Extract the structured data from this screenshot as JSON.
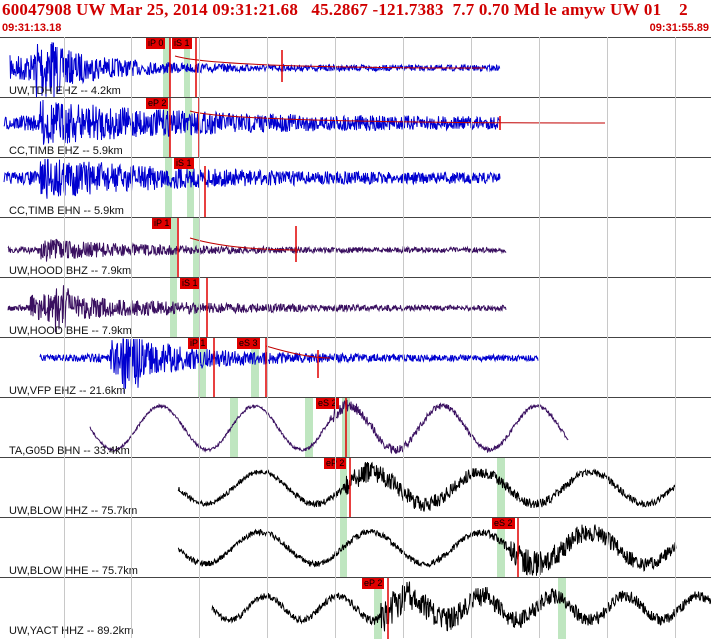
{
  "header": {
    "title": "60047908 UW Mar 25, 2014 09:31:21.68   45.2867 -121.7383  7.7 0.70 Md le amyw UW 01    2",
    "time_start": "09:31:13.18",
    "time_end": "09:31:55.89"
  },
  "panels": [
    {
      "label": "UW,TDH EHZ -- 4.2km",
      "color": "#0000d0",
      "picks": [
        {
          "text": "iP 0"
        },
        {
          "text": "iS 1"
        }
      ]
    },
    {
      "label": "CC,TIMB EHZ -- 5.9km",
      "color": "#0000d0",
      "picks": [
        {
          "text": "eP 2"
        }
      ]
    },
    {
      "label": "CC,TIMB EHN -- 5.9km",
      "color": "#0000d0",
      "picks": [
        {
          "text": "iS 1"
        }
      ]
    },
    {
      "label": "UW,HOOD BHZ -- 7.9km",
      "color": "#3a1060",
      "picks": [
        {
          "text": "iP 1"
        }
      ]
    },
    {
      "label": "UW,HOOD BHE -- 7.9km",
      "color": "#3a1060",
      "picks": [
        {
          "text": "iS 1"
        }
      ]
    },
    {
      "label": "UW,VFP EHZ -- 21.6km",
      "color": "#0000d0",
      "picks": [
        {
          "text": "iP 1"
        },
        {
          "text": "eS 3"
        }
      ]
    },
    {
      "label": "TA,G05D BHN -- 33.4km",
      "color": "#3a1060",
      "picks": [
        {
          "text": "eS 2"
        }
      ]
    },
    {
      "label": "UW,BLOW HHZ -- 75.7km",
      "color": "#000000",
      "picks": [
        {
          "text": "eP 2"
        }
      ]
    },
    {
      "label": "UW,BLOW HHE -- 75.7km",
      "color": "#000000",
      "picks": [
        {
          "text": "eS 2"
        }
      ]
    },
    {
      "label": "UW,YACT HHZ -- 89.2km",
      "color": "#000000",
      "picks": [
        {
          "text": "eP 2"
        }
      ]
    }
  ]
}
